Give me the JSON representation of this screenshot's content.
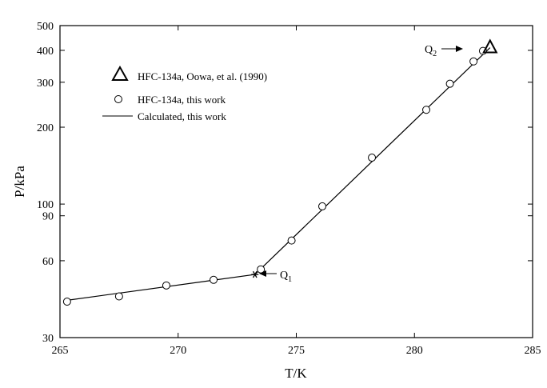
{
  "chart_data": {
    "type": "scatter",
    "title": "",
    "xlabel": "T/K",
    "ylabel": "P/kPa",
    "xlim": [
      265,
      285
    ],
    "ylim": [
      30,
      500
    ],
    "yscale": "log",
    "grid": false,
    "x_ticks": [
      265,
      270,
      275,
      280,
      285
    ],
    "x_tick_labels": [
      "265",
      "270",
      "275",
      "280",
      "285"
    ],
    "y_ticks": [
      30,
      60,
      90,
      100,
      200,
      300,
      400,
      500
    ],
    "y_tick_labels": [
      "30",
      "60",
      "90",
      "100",
      "200",
      "300",
      "400",
      "500"
    ],
    "legend_position": "top-left",
    "series": [
      {
        "name": "HFC-134a, Oowa, et al. (1990)",
        "marker": "triangle",
        "points": [
          {
            "x": 283.2,
            "y": 410
          }
        ]
      },
      {
        "name": "HFC-134a, this work",
        "marker": "circle",
        "points": [
          {
            "x": 265.3,
            "y": 41.5
          },
          {
            "x": 267.5,
            "y": 43.5
          },
          {
            "x": 269.5,
            "y": 48.0
          },
          {
            "x": 271.5,
            "y": 50.5
          },
          {
            "x": 273.5,
            "y": 55.5
          },
          {
            "x": 274.8,
            "y": 72.0
          },
          {
            "x": 276.1,
            "y": 98.0
          },
          {
            "x": 278.2,
            "y": 152.0
          },
          {
            "x": 280.5,
            "y": 234.0
          },
          {
            "x": 281.5,
            "y": 296.0
          },
          {
            "x": 282.5,
            "y": 362.0
          },
          {
            "x": 282.9,
            "y": 398.0
          }
        ]
      },
      {
        "name": "Calculated, this work",
        "marker": "line",
        "points": [
          {
            "x": 265.3,
            "y": 42.0
          },
          {
            "x": 273.25,
            "y": 53.0
          },
          {
            "x": 283.2,
            "y": 410
          }
        ]
      }
    ],
    "annotations": [
      {
        "label": "Q",
        "subscript": "1",
        "x": 273.25,
        "y": 53.0,
        "marker": "asterisk"
      },
      {
        "label": "Q",
        "subscript": "2",
        "x": 283.2,
        "y": 410
      }
    ]
  }
}
